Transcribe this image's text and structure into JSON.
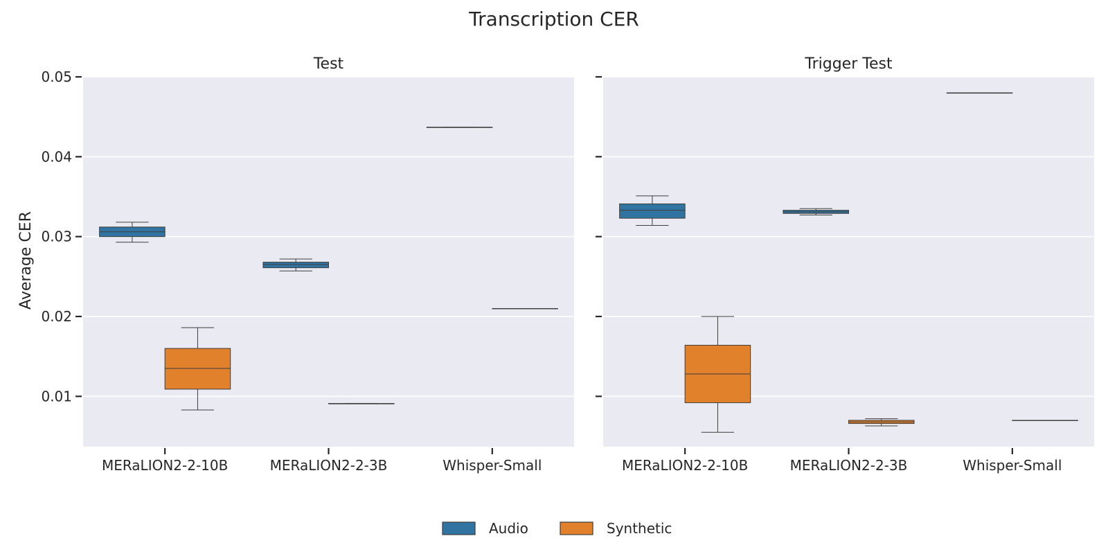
{
  "chart_data": {
    "type": "box",
    "title": "Transcription CER",
    "ylabel": "Average CER",
    "ylim": [
      0.0037,
      0.05
    ],
    "yticks": [
      0.01,
      0.02,
      0.03,
      0.04,
      0.05
    ],
    "ytick_labels": [
      "0.01",
      "0.02",
      "0.03",
      "0.04",
      "0.05"
    ],
    "grid": true,
    "legend_position": "bottom-center",
    "categories": [
      "MERaLION2-2-10B",
      "MERaLION2-2-3B",
      "Whisper-Small"
    ],
    "series": [
      {
        "name": "Audio",
        "color": "#3274a1"
      },
      {
        "name": "Synthetic",
        "color": "#e1812c"
      }
    ],
    "panels": [
      {
        "title": "Test",
        "boxes": {
          "Audio": [
            {
              "min": 0.0293,
              "q1": 0.03,
              "median": 0.0306,
              "q3": 0.0312,
              "max": 0.0318
            },
            {
              "min": 0.0257,
              "q1": 0.0261,
              "median": 0.0265,
              "q3": 0.0268,
              "max": 0.0272
            },
            {
              "min": 0.0437,
              "q1": 0.0437,
              "median": 0.0437,
              "q3": 0.0437,
              "max": 0.0437
            }
          ],
          "Synthetic": [
            {
              "min": 0.0083,
              "q1": 0.0109,
              "median": 0.0135,
              "q3": 0.016,
              "max": 0.0186
            },
            {
              "min": 0.0091,
              "q1": 0.0091,
              "median": 0.0091,
              "q3": 0.0091,
              "max": 0.0091
            },
            {
              "min": 0.021,
              "q1": 0.021,
              "median": 0.021,
              "q3": 0.021,
              "max": 0.021
            }
          ]
        }
      },
      {
        "title": "Trigger Test",
        "boxes": {
          "Audio": [
            {
              "min": 0.0314,
              "q1": 0.0323,
              "median": 0.0333,
              "q3": 0.0341,
              "max": 0.0351
            },
            {
              "min": 0.0327,
              "q1": 0.0329,
              "median": 0.0331,
              "q3": 0.0333,
              "max": 0.0335
            },
            {
              "min": 0.048,
              "q1": 0.048,
              "median": 0.048,
              "q3": 0.048,
              "max": 0.048
            }
          ],
          "Synthetic": [
            {
              "min": 0.0055,
              "q1": 0.0092,
              "median": 0.0128,
              "q3": 0.0164,
              "max": 0.02
            },
            {
              "min": 0.0063,
              "q1": 0.0066,
              "median": 0.0068,
              "q3": 0.007,
              "max": 0.0072
            },
            {
              "min": 0.007,
              "q1": 0.007,
              "median": 0.007,
              "q3": 0.007,
              "max": 0.007
            }
          ]
        }
      }
    ]
  }
}
